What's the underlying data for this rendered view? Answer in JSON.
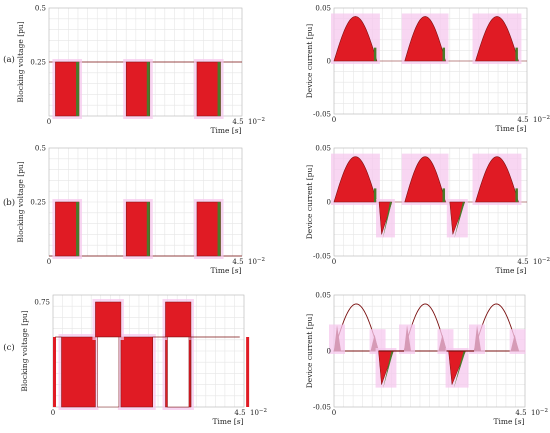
{
  "row_labels": [
    "(a)",
    "(b)",
    "(c)"
  ],
  "chart_data": [
    {
      "id": "a-left",
      "type": "line",
      "xlabel": "Time [s]",
      "ylabel": "Blocking voltage [pu]",
      "xticks": [
        0,
        4.5
      ],
      "xtick_labels": [
        "0",
        "4.5"
      ],
      "x_exponent": "10^-2",
      "yticks": [
        0.25,
        0.5
      ],
      "ytick_labels": [
        "0.25",
        "0.5"
      ],
      "xlim": [
        0,
        4.5
      ],
      "ylim": [
        0,
        0.5
      ],
      "grid": true,
      "series": [
        {
          "kind": "pulse",
          "y": [
            0,
            0.25
          ],
          "windows": [
            [
              0.15,
              0.7
            ],
            [
              1.8,
              2.35
            ],
            [
              3.45,
              4.0
            ]
          ],
          "baseline": 0.25
        }
      ]
    },
    {
      "id": "a-right",
      "type": "line",
      "xlabel": "Time [s]",
      "ylabel": "Device current [pu]",
      "xticks": [
        0,
        4.5
      ],
      "xtick_labels": [
        "0",
        "4.5"
      ],
      "x_exponent": "10^-2",
      "yticks": [
        -0.05,
        0,
        0.05
      ],
      "ytick_labels": [
        "-0.05",
        "0",
        "0.05"
      ],
      "xlim": [
        0,
        4.5
      ],
      "ylim": [
        -0.05,
        0.05
      ],
      "grid": true,
      "series": [
        {
          "kind": "halfsine",
          "peak": 0.042,
          "windows": [
            [
              0.0,
              1.0
            ],
            [
              1.65,
              2.6
            ],
            [
              3.3,
              4.3
            ]
          ],
          "neg": []
        }
      ]
    },
    {
      "id": "b-left",
      "type": "line",
      "xlabel": "Time [s]",
      "ylabel": "Blocking voltage [pu]",
      "xticks": [
        0,
        4.5
      ],
      "xtick_labels": [
        "0",
        "4.5"
      ],
      "x_exponent": "10^-2",
      "yticks": [
        0.25,
        0.5
      ],
      "ytick_labels": [
        "0.25",
        "0.5"
      ],
      "xlim": [
        0,
        4.5
      ],
      "ylim": [
        0,
        0.5
      ],
      "grid": true,
      "series": [
        {
          "kind": "pulse",
          "y": [
            0,
            0.25
          ],
          "windows": [
            [
              0.15,
              0.7
            ],
            [
              1.8,
              2.35
            ],
            [
              3.45,
              4.0
            ]
          ],
          "baseline": 0
        }
      ]
    },
    {
      "id": "b-right",
      "type": "line",
      "xlabel": "Time [s]",
      "ylabel": "Device current [pu]",
      "xticks": [
        0,
        4.5
      ],
      "xtick_labels": [
        "0",
        "4.5"
      ],
      "x_exponent": "10^-2",
      "yticks": [
        -0.05,
        0,
        0.05
      ],
      "ytick_labels": [
        "-0.05",
        "0",
        "0.05"
      ],
      "xlim": [
        0,
        4.5
      ],
      "ylim": [
        -0.05,
        0.05
      ],
      "grid": true,
      "series": [
        {
          "kind": "halfsine",
          "peak": 0.042,
          "windows": [
            [
              0.0,
              1.0
            ],
            [
              1.65,
              2.6
            ],
            [
              3.3,
              4.3
            ]
          ],
          "neg": [
            [
              1.05,
              1.35,
              -0.03
            ],
            [
              2.7,
              3.05,
              -0.03
            ]
          ]
        }
      ]
    },
    {
      "id": "c-left",
      "type": "line",
      "xlabel": "Time [s]",
      "ylabel": "Blocking voltage [pu]",
      "xticks": [
        0,
        4.5
      ],
      "xtick_labels": [
        "0",
        "4.5"
      ],
      "x_exponent": "10^-2",
      "yticks": [
        0.75
      ],
      "ytick_labels": [
        "0.75"
      ],
      "xlim": [
        0,
        4.5
      ],
      "ylim": [
        0,
        0.8
      ],
      "grid": true,
      "series": [
        {
          "kind": "stepped",
          "high": [
            [
              1.0,
              1.6,
              0.75
            ],
            [
              2.65,
              3.25,
              0.75
            ]
          ],
          "mid": [
            [
              -0.1,
              0.05,
              0.5
            ],
            [
              1.0,
              1.6,
              0.5
            ],
            [
              2.65,
              3.25,
              0.5
            ],
            [
              4.55,
              4.7,
              0.5
            ]
          ],
          "outer": [
            [
              0.2,
              1.0,
              0.5
            ],
            [
              1.6,
              2.35,
              0.5
            ],
            [
              2.65,
              3.25,
              0.5
            ]
          ]
        }
      ]
    },
    {
      "id": "c-right",
      "type": "line",
      "xlabel": "Time [s]",
      "ylabel": "Device current [pu]",
      "xticks": [
        0,
        4.5
      ],
      "xtick_labels": [
        "0",
        "4.5"
      ],
      "x_exponent": "10^-2",
      "yticks": [
        -0.05,
        0,
        0.05
      ],
      "ytick_labels": [
        "-0.05",
        "0",
        "0.05"
      ],
      "xlim": [
        0,
        4.5
      ],
      "ylim": [
        -0.05,
        0.05
      ],
      "grid": true,
      "series": [
        {
          "kind": "halfsine_outline",
          "peak": 0.042,
          "windows": [
            [
              0.0,
              1.05
            ],
            [
              1.65,
              2.65
            ],
            [
              3.3,
              4.35
            ]
          ],
          "neg": [
            [
              1.05,
              1.4,
              -0.03
            ],
            [
              2.7,
              3.1,
              -0.03
            ]
          ]
        }
      ]
    }
  ],
  "colors": {
    "fill": "#e01b24",
    "edge": "#7a1010",
    "pink": "#f6c8ee",
    "green": "#4a7a2a",
    "axis": "#9a9a9a"
  }
}
